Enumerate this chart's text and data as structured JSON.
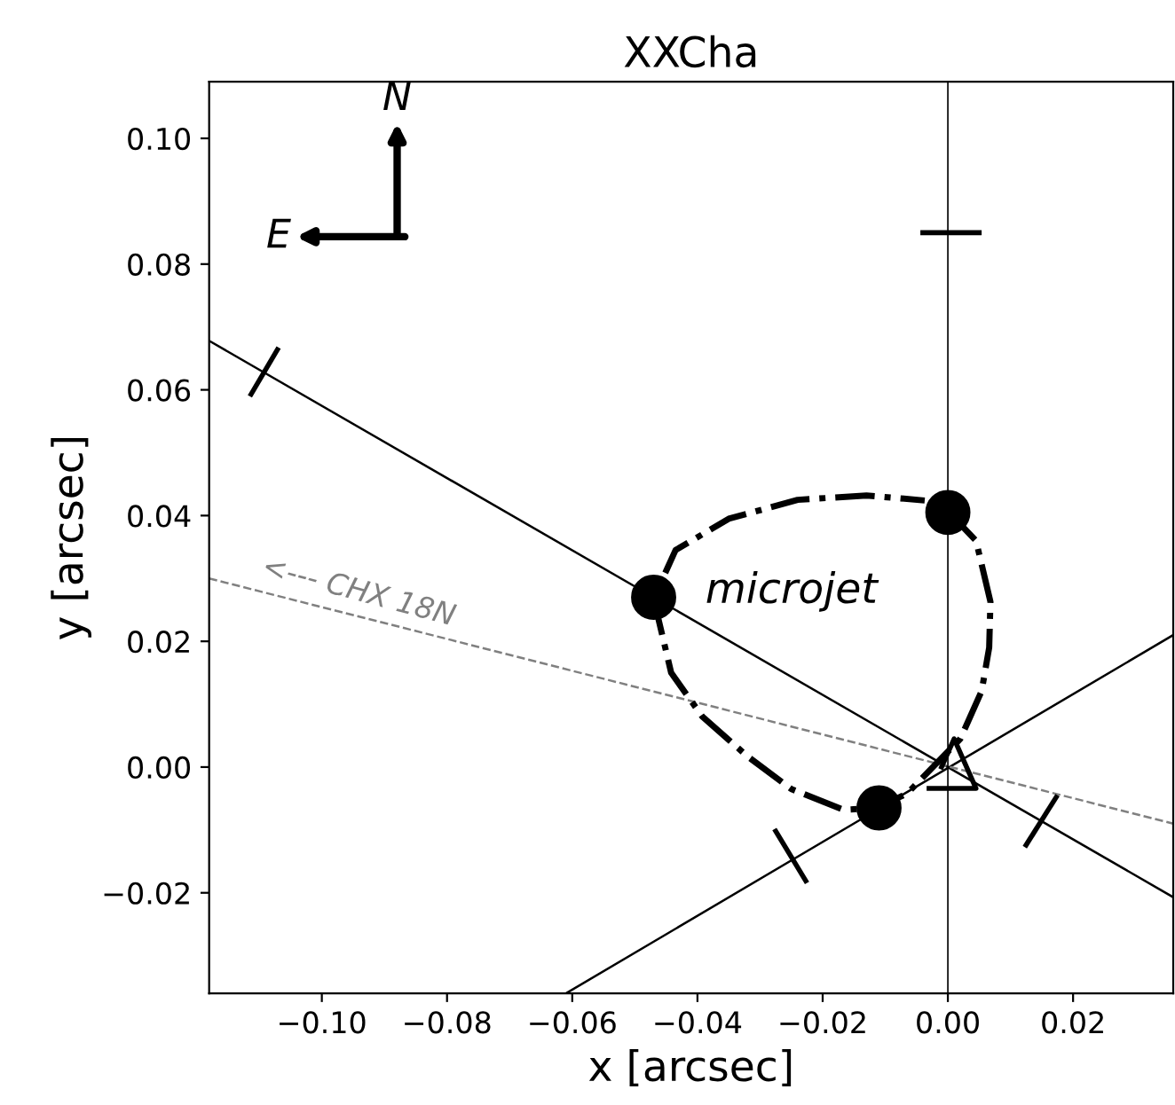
{
  "chart_data": {
    "type": "line",
    "title": "XXCha",
    "xlabel": "x [arcsec]",
    "ylabel": "y [arcsec]",
    "xlim": [
      -0.118,
      0.036
    ],
    "ylim": [
      -0.036,
      0.109
    ],
    "xticks": [
      {
        "value": -0.1,
        "label": "−0.10"
      },
      {
        "value": -0.08,
        "label": "−0.08"
      },
      {
        "value": -0.06,
        "label": "−0.06"
      },
      {
        "value": -0.04,
        "label": "−0.04"
      },
      {
        "value": -0.02,
        "label": "−0.02"
      },
      {
        "value": 0.0,
        "label": "0.00"
      },
      {
        "value": 0.02,
        "label": "0.02"
      }
    ],
    "yticks": [
      {
        "value": -0.02,
        "label": "−0.02"
      },
      {
        "value": 0.0,
        "label": "0.00"
      },
      {
        "value": 0.02,
        "label": "0.02"
      },
      {
        "value": 0.04,
        "label": "0.04"
      },
      {
        "value": 0.06,
        "label": "0.06"
      },
      {
        "value": 0.08,
        "label": "0.08"
      },
      {
        "value": 0.1,
        "label": "0.10"
      }
    ],
    "grid": false,
    "ref_lines": [
      {
        "axis": "x",
        "value": 0.0,
        "color": "#000000",
        "line_style": "solid"
      }
    ],
    "series": [
      {
        "type": "line",
        "color": "#000000",
        "line_style": "solid",
        "x": [
          -0.118,
          0.036
        ],
        "values": [
          0.0678,
          -0.0207
        ]
      },
      {
        "type": "line",
        "color": "#000000",
        "line_style": "solid",
        "x": [
          -0.061,
          0.036
        ],
        "values": [
          -0.036,
          0.021
        ]
      },
      {
        "type": "line",
        "color": "#808080",
        "line_style": "dashed",
        "x": [
          -0.118,
          0.036
        ],
        "values": [
          0.03,
          -0.009
        ]
      },
      {
        "type": "line",
        "color": "#000000",
        "line_style": "solid",
        "x": [
          -0.1113,
          -0.1071
        ],
        "values": [
          0.0593,
          0.0664
        ]
      },
      {
        "type": "line",
        "color": "#000000",
        "line_style": "solid",
        "x": [
          -0.0275,
          -0.0227
        ],
        "values": [
          -0.0102,
          -0.0181
        ]
      },
      {
        "type": "line",
        "color": "#000000",
        "line_style": "solid",
        "x": [
          0.0125,
          0.0173
        ],
        "values": [
          -0.0124,
          -0.0048
        ]
      },
      {
        "type": "line",
        "color": "#000000",
        "line_style": "solid",
        "x": [
          -0.004,
          0.005
        ],
        "values": [
          0.085,
          0.085
        ]
      },
      {
        "type": "line",
        "color": "#000000",
        "line_style": "solid",
        "x": [
          -0.003,
          0.0045,
          0.001,
          -0.001
        ],
        "values": [
          -0.0034,
          -0.0034,
          0.0045,
          0.0
        ]
      },
      {
        "color": "#000000",
        "line_style": "dashdot",
        "x": [
          0.0,
          0.0045,
          0.0068,
          0.0066,
          0.0054,
          0.002,
          -0.0065,
          -0.0113,
          -0.0167,
          -0.025,
          -0.032,
          -0.0392,
          -0.0442,
          -0.047,
          -0.0435,
          -0.035,
          -0.024,
          -0.013,
          -0.0037
        ],
        "values": [
          0.0407,
          0.036,
          0.0263,
          0.019,
          0.0121,
          0.0045,
          -0.0042,
          -0.0065,
          -0.0068,
          -0.0035,
          0.0017,
          0.008,
          0.015,
          0.0268,
          0.0345,
          0.0395,
          0.0425,
          0.0432,
          0.0424
        ]
      },
      {
        "type": "scatter",
        "color": "#000000",
        "marker": "circle",
        "x": [
          -0.047,
          0.0,
          -0.011
        ],
        "values": [
          0.027,
          0.0405,
          -0.0065
        ]
      }
    ],
    "annotations": [
      "N",
      "E",
      "microjet",
      "<--- CHX 18N"
    ]
  }
}
